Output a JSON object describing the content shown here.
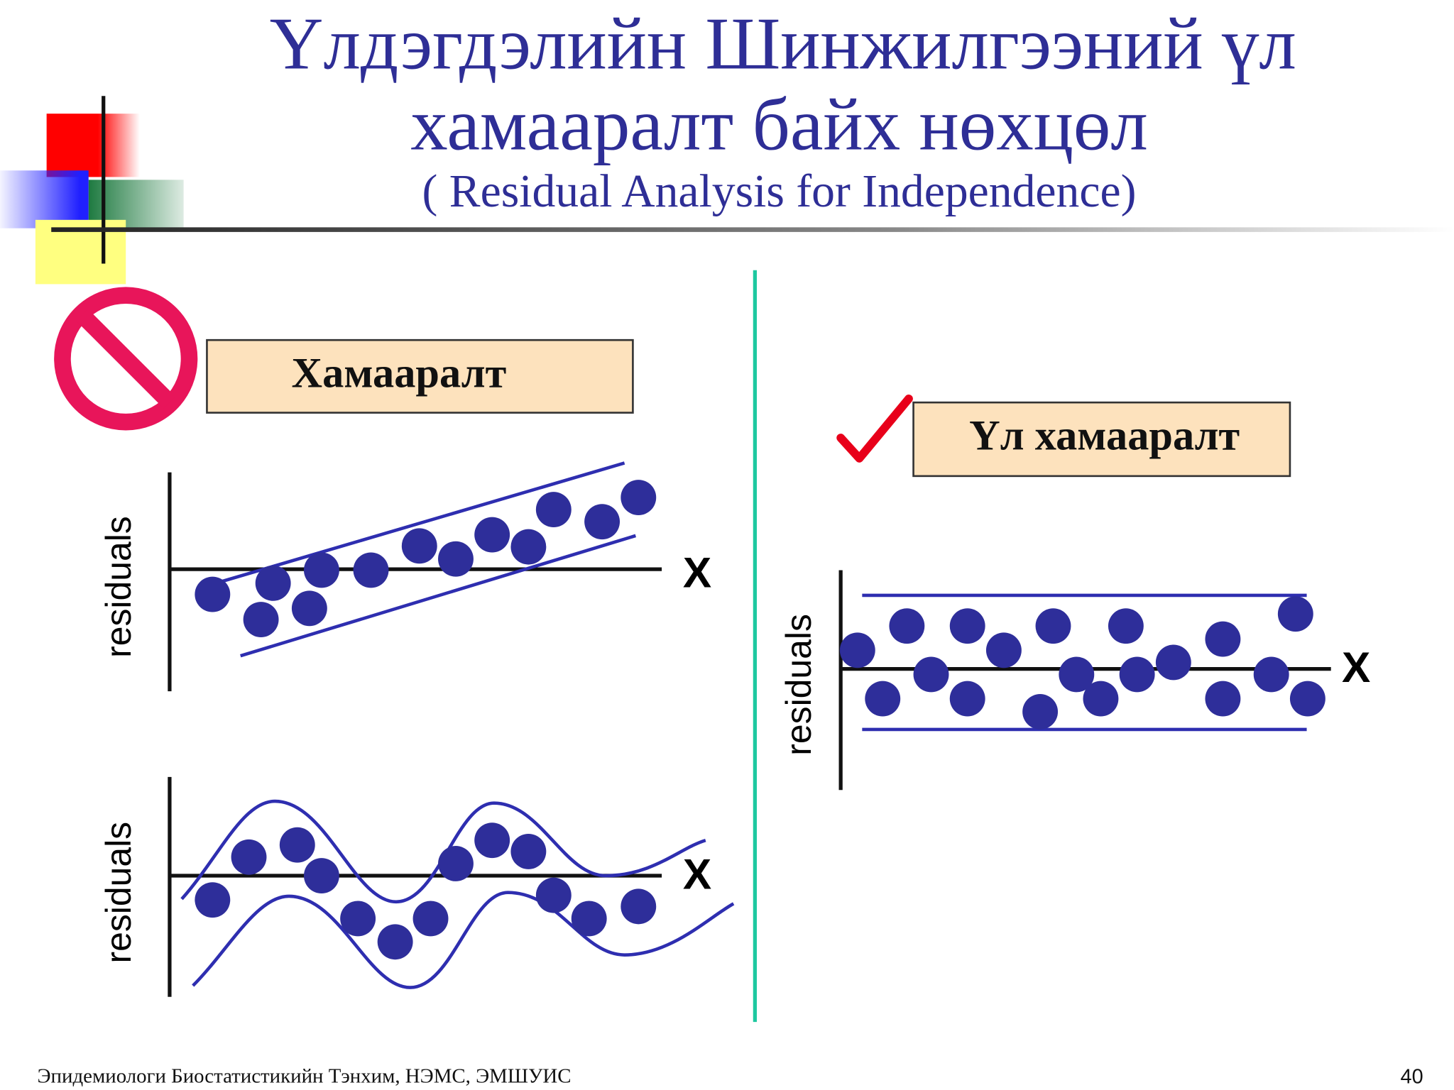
{
  "header": {
    "title_lines": [
      "Үлдэгдэлийн Шинжилгээний үл",
      "хамааралт байх нөхцөл"
    ],
    "subtitle": "( Residual Analysis for Independence)"
  },
  "panels": [
    {
      "label": "Хамааралт",
      "charts": [
        {
          "y_label": "residuals",
          "x_label": "X"
        },
        {
          "y_label": "residuals",
          "x_label": "X"
        }
      ]
    },
    {
      "label": "Үл хамааралт",
      "charts": [
        {
          "y_label": "residuals",
          "x_label": "X"
        }
      ]
    }
  ],
  "footer": {
    "text": "Эпидемиологи Биостатистикийн Тэнхим, НЭМС, ЭМШУИС",
    "page": "40"
  }
}
